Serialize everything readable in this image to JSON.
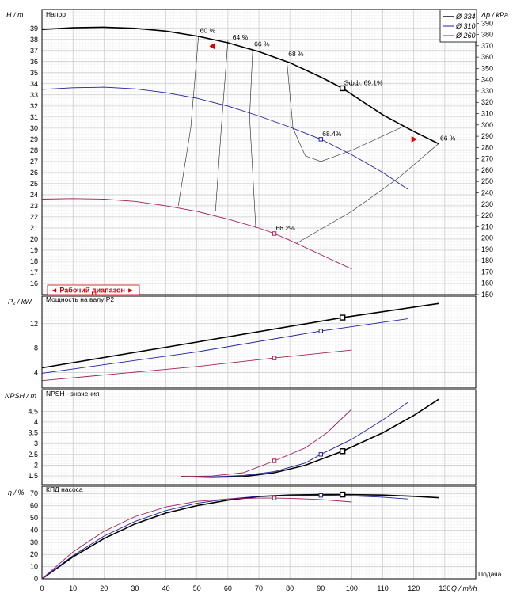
{
  "chart_data": {
    "type": "line",
    "x_axis": {
      "label": "Q / m³/h",
      "caption": "Подача",
      "min": 0,
      "max": 140,
      "ticks": [
        "0",
        "10",
        "20",
        "30",
        "40",
        "50",
        "60",
        "70",
        "80",
        "90",
        "100",
        "110",
        "120",
        "130"
      ]
    },
    "legend": {
      "placement": "top-right",
      "entries": [
        {
          "name": "Ø 334",
          "color": "#000000"
        },
        {
          "name": "Ø 310",
          "color": "#2020a0"
        },
        {
          "name": "Ø 260",
          "color": "#a0205a"
        }
      ]
    },
    "panels": [
      {
        "id": "head",
        "title": "Напор",
        "ylabel": "H / m",
        "ylabel_right": "Δp / kPa",
        "ylim": [
          15,
          40.7
        ],
        "yticks": [
          "16",
          "17",
          "18",
          "19",
          "20",
          "21",
          "22",
          "23",
          "24",
          "25",
          "26",
          "27",
          "28",
          "29",
          "30",
          "31",
          "32",
          "33",
          "34",
          "35",
          "36",
          "37",
          "38",
          "39"
        ],
        "yticks_right": [
          "150",
          "160",
          "170",
          "180",
          "190",
          "200",
          "210",
          "220",
          "230",
          "240",
          "250",
          "260",
          "270",
          "280",
          "290",
          "300",
          "310",
          "320",
          "330",
          "340",
          "350",
          "360",
          "370",
          "380",
          "390"
        ],
        "range_label": "◄ Рабочий диапазон ►",
        "series": [
          {
            "name": "Ø 334",
            "points": [
              [
                0,
                38.9
              ],
              [
                10,
                39.05
              ],
              [
                20,
                39.1
              ],
              [
                30,
                39.0
              ],
              [
                40,
                38.75
              ],
              [
                50,
                38.3
              ],
              [
                60,
                37.7
              ],
              [
                70,
                36.9
              ],
              [
                80,
                35.9
              ],
              [
                90,
                34.6
              ],
              [
                97,
                33.6
              ],
              [
                110,
                31.2
              ],
              [
                120,
                29.7
              ],
              [
                128,
                28.6
              ]
            ]
          },
          {
            "name": "Ø 310",
            "points": [
              [
                0,
                33.5
              ],
              [
                10,
                33.65
              ],
              [
                20,
                33.7
              ],
              [
                30,
                33.55
              ],
              [
                40,
                33.2
              ],
              [
                50,
                32.7
              ],
              [
                60,
                32.0
              ],
              [
                70,
                31.1
              ],
              [
                80,
                30.1
              ],
              [
                90,
                29.0
              ],
              [
                100,
                27.6
              ],
              [
                110,
                26.0
              ],
              [
                118,
                24.5
              ]
            ]
          },
          {
            "name": "Ø 260",
            "points": [
              [
                0,
                23.6
              ],
              [
                10,
                23.65
              ],
              [
                20,
                23.6
              ],
              [
                30,
                23.4
              ],
              [
                40,
                23.0
              ],
              [
                50,
                22.5
              ],
              [
                60,
                21.8
              ],
              [
                70,
                21.0
              ],
              [
                75,
                20.5
              ],
              [
                80,
                19.9
              ],
              [
                90,
                18.6
              ],
              [
                100,
                17.3
              ]
            ]
          }
        ],
        "efficiency_lines": [
          {
            "label": "60 %",
            "points": [
              [
                44,
                23.0
              ],
              [
                48,
                30.0
              ],
              [
                50.5,
                38.3
              ]
            ]
          },
          {
            "label": "64 %",
            "points": [
              [
                56,
                22.5
              ],
              [
                58,
                30.5
              ],
              [
                60,
                37.9
              ]
            ]
          },
          {
            "label": "66 %",
            "points": [
              [
                69,
                21.0
              ],
              [
                67,
                31.0
              ],
              [
                68,
                37.1
              ]
            ]
          },
          {
            "label": "68 %",
            "points": [
              [
                79,
                36.2
              ],
              [
                81,
                30.0
              ],
              [
                85,
                27.5
              ],
              [
                90,
                27.0
              ],
              [
                100,
                28.0
              ],
              [
                117,
                30.2
              ]
            ]
          },
          {
            "label": "66 %",
            "points": [
              [
                82,
                19.6
              ],
              [
                100,
                22.5
              ],
              [
                115,
                25.5
              ],
              [
                128,
                28.6
              ]
            ]
          }
        ],
        "annotations": [
          {
            "text": "60 %",
            "x": 50.5,
            "y": 38.3
          },
          {
            "text": "64 %",
            "x": 61,
            "y": 37.7
          },
          {
            "text": "66 %",
            "x": 68,
            "y": 37.1
          },
          {
            "text": "68 %",
            "x": 79,
            "y": 36.2
          },
          {
            "text": "Эфф. 69.1%",
            "x": 97,
            "y": 33.6
          },
          {
            "text": "66 %",
            "x": 128,
            "y": 28.6
          },
          {
            "text": "68.4%",
            "x": 90,
            "y": 29.0
          },
          {
            "text": "66.2%",
            "x": 75,
            "y": 20.5
          }
        ],
        "markers": [
          {
            "x": 97,
            "y": 33.6,
            "series": "Ø 334"
          },
          {
            "x": 90,
            "y": 29.0,
            "series": "Ø 310"
          },
          {
            "x": 75,
            "y": 20.5,
            "series": "Ø 260"
          }
        ],
        "range_markers": [
          {
            "x": 55,
            "y": 37.4,
            "dir": "left"
          },
          {
            "x": 120,
            "y": 29.0,
            "dir": "right"
          }
        ]
      },
      {
        "id": "power",
        "title": "Мощность на валу P2",
        "ylabel": "P₂ / kW",
        "ylim": [
          1.5,
          16.5
        ],
        "yticks": [
          "4",
          "8",
          "12"
        ],
        "series": [
          {
            "name": "Ø 334",
            "points": [
              [
                0,
                4.8
              ],
              [
                50,
                9.0
              ],
              [
                97,
                13.0
              ],
              [
                128,
                15.3
              ]
            ]
          },
          {
            "name": "Ø 310",
            "points": [
              [
                0,
                3.9
              ],
              [
                50,
                7.4
              ],
              [
                90,
                10.8
              ],
              [
                118,
                12.8
              ]
            ]
          },
          {
            "name": "Ø 260",
            "points": [
              [
                0,
                2.7
              ],
              [
                50,
                5.0
              ],
              [
                75,
                6.4
              ],
              [
                100,
                7.7
              ]
            ]
          }
        ],
        "markers": [
          {
            "x": 97,
            "y": 13.0,
            "series": "Ø 334"
          },
          {
            "x": 90,
            "y": 10.8,
            "series": "Ø 310"
          },
          {
            "x": 75,
            "y": 6.4,
            "series": "Ø 260"
          }
        ]
      },
      {
        "id": "npsh",
        "title": "NPSH - значения",
        "ylabel": "NPSH / m",
        "ylim": [
          1.1,
          5.5
        ],
        "yticks": [
          "1.5",
          "2",
          "2.5",
          "3",
          "3.5",
          "4",
          "4.5"
        ],
        "series": [
          {
            "name": "Ø 334",
            "points": [
              [
                45,
                1.47
              ],
              [
                55,
                1.44
              ],
              [
                65,
                1.47
              ],
              [
                75,
                1.65
              ],
              [
                85,
                2.0
              ],
              [
                97,
                2.65
              ],
              [
                110,
                3.5
              ],
              [
                120,
                4.3
              ],
              [
                128,
                5.05
              ]
            ]
          },
          {
            "name": "Ø 310",
            "points": [
              [
                45,
                1.47
              ],
              [
                55,
                1.46
              ],
              [
                65,
                1.52
              ],
              [
                75,
                1.7
              ],
              [
                85,
                2.1
              ],
              [
                90,
                2.5
              ],
              [
                100,
                3.2
              ],
              [
                110,
                4.1
              ],
              [
                118,
                4.9
              ]
            ]
          },
          {
            "name": "Ø 260",
            "points": [
              [
                45,
                1.47
              ],
              [
                55,
                1.5
              ],
              [
                65,
                1.65
              ],
              [
                75,
                2.2
              ],
              [
                85,
                2.8
              ],
              [
                92,
                3.5
              ],
              [
                100,
                4.6
              ]
            ]
          }
        ],
        "markers": [
          {
            "x": 97,
            "y": 2.65,
            "series": "Ø 334"
          },
          {
            "x": 90,
            "y": 2.5,
            "series": "Ø 310"
          },
          {
            "x": 75,
            "y": 2.2,
            "series": "Ø 260"
          }
        ]
      },
      {
        "id": "eff",
        "title": "КПД насоса",
        "ylabel": "η / %",
        "ylim": [
          0,
          76
        ],
        "yticks": [
          "0",
          "10",
          "20",
          "30",
          "40",
          "50",
          "60",
          "70"
        ],
        "series": [
          {
            "name": "Ø 334",
            "points": [
              [
                0,
                0
              ],
              [
                10,
                18
              ],
              [
                20,
                33
              ],
              [
                30,
                45
              ],
              [
                40,
                54
              ],
              [
                50,
                60
              ],
              [
                60,
                64.5
              ],
              [
                70,
                67.5
              ],
              [
                80,
                68.7
              ],
              [
                90,
                69.1
              ],
              [
                97,
                69.1
              ],
              [
                110,
                68.7
              ],
              [
                120,
                67.7
              ],
              [
                128,
                66.5
              ]
            ]
          },
          {
            "name": "Ø 310",
            "points": [
              [
                0,
                0
              ],
              [
                10,
                19
              ],
              [
                20,
                35
              ],
              [
                30,
                47
              ],
              [
                40,
                56
              ],
              [
                50,
                62
              ],
              [
                60,
                65.5
              ],
              [
                70,
                67.7
              ],
              [
                80,
                68.3
              ],
              [
                90,
                68.4
              ],
              [
                100,
                68.0
              ],
              [
                110,
                67.0
              ],
              [
                118,
                65.5
              ]
            ]
          },
          {
            "name": "Ø 260",
            "points": [
              [
                0,
                0
              ],
              [
                10,
                22
              ],
              [
                20,
                39
              ],
              [
                30,
                51
              ],
              [
                40,
                59
              ],
              [
                50,
                63.5
              ],
              [
                60,
                65.5
              ],
              [
                70,
                66.2
              ],
              [
                75,
                66.2
              ],
              [
                80,
                66.0
              ],
              [
                90,
                65.0
              ],
              [
                100,
                63.0
              ]
            ]
          }
        ],
        "markers": [
          {
            "x": 97,
            "y": 69.1,
            "series": "Ø 334"
          },
          {
            "x": 90,
            "y": 68.4,
            "series": "Ø 310"
          },
          {
            "x": 75,
            "y": 66.2,
            "series": "Ø 260"
          }
        ]
      }
    ]
  }
}
